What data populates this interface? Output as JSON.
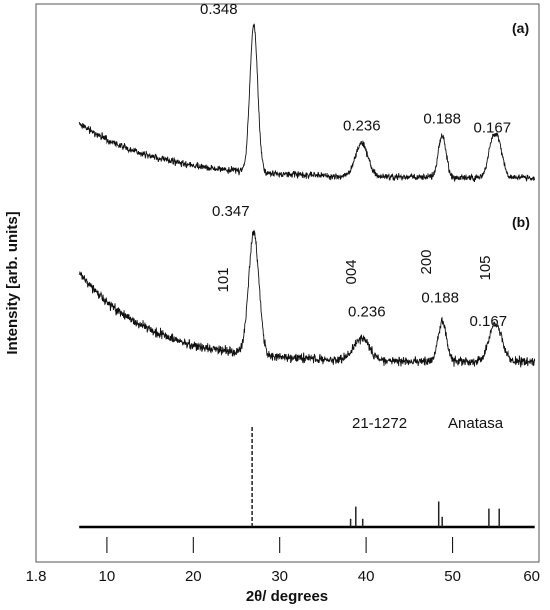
{
  "chart_data": {
    "type": "line",
    "xlabel": "2θ/ degrees",
    "ylabel": "Intensity [arb. units]",
    "xlim": [
      1.8,
      60
    ],
    "x_tick_labels": [
      "1.8",
      "10",
      "20",
      "30",
      "40",
      "50",
      "60"
    ],
    "x_tick_values": [
      1.8,
      10,
      20,
      30,
      40,
      50,
      60
    ],
    "grid": false,
    "series": [
      {
        "name": "(a)",
        "x_range": [
          6.8,
          59.5
        ],
        "peaks": [
          {
            "x": 27.0,
            "label": "0.348"
          },
          {
            "x": 39.5,
            "label": "0.236"
          },
          {
            "x": 48.8,
            "label": "0.188"
          },
          {
            "x": 54.6,
            "label": "0.167"
          },
          {
            "x": 55.4,
            "label": ""
          }
        ]
      },
      {
        "name": "(b)",
        "x_range": [
          6.8,
          59.5
        ],
        "peaks": [
          {
            "x": 27.0,
            "label": "0.347",
            "hkl": "101"
          },
          {
            "x": 39.5,
            "label": "0.236",
            "hkl": "004"
          },
          {
            "x": 48.8,
            "label": "0.188",
            "hkl": "200"
          },
          {
            "x": 54.6,
            "label": "0.167",
            "hkl": "105"
          },
          {
            "x": 55.4,
            "label": ""
          }
        ]
      }
    ],
    "reference": {
      "card": "21-1272",
      "phase": "Anatasa",
      "lines": [
        {
          "x": 26.8,
          "rel": 100
        },
        {
          "x": 38.2,
          "rel": 8
        },
        {
          "x": 38.8,
          "rel": 20
        },
        {
          "x": 39.6,
          "rel": 8
        },
        {
          "x": 48.4,
          "rel": 25
        },
        {
          "x": 48.8,
          "rel": 10
        },
        {
          "x": 54.2,
          "rel": 18
        },
        {
          "x": 55.4,
          "rel": 18
        }
      ]
    }
  }
}
